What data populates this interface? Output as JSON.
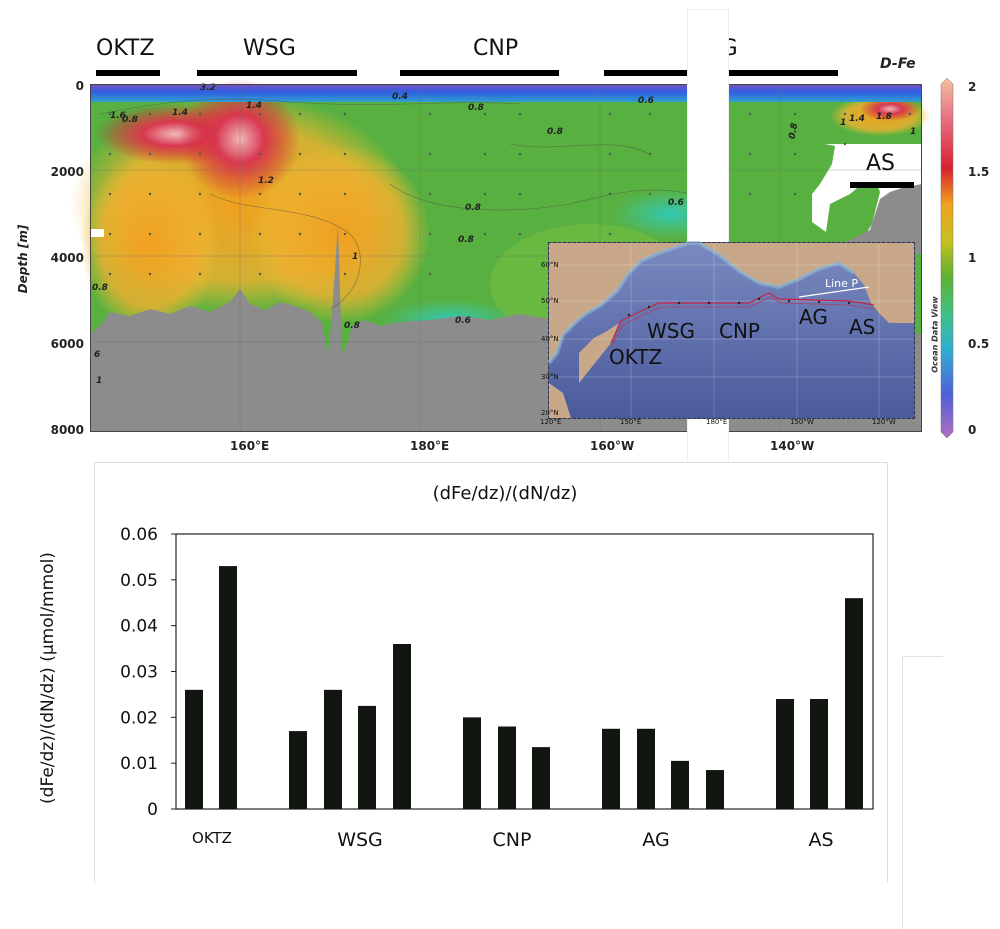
{
  "section_plot": {
    "regions": [
      {
        "label": "OKTZ"
      },
      {
        "label": "WSG"
      },
      {
        "label": "CNP"
      },
      {
        "label": "AG"
      },
      {
        "label": "AS"
      }
    ],
    "title": "D-Fe",
    "ylabel": "Depth [m]",
    "y_ticks": [
      "0",
      "2000",
      "4000",
      "6000",
      "8000"
    ],
    "x_ticks": [
      "160°E",
      "180°E",
      "160°W",
      "140°W"
    ],
    "colorbar_ticks": [
      "2",
      "1.5",
      "1",
      "0.5",
      "0"
    ],
    "colorbar_caption": "Ocean Data View",
    "contour_labels": [
      "3.2",
      "1.6",
      "1.4",
      "1.4",
      "1.2",
      "0.4",
      "0.8",
      "0.8",
      "0.8",
      "0.6",
      "0.6",
      "0.8",
      "1",
      "0.8",
      "0.6",
      "0.8",
      "1",
      "0.8",
      "1.4",
      "1.8",
      "1",
      "1",
      "6",
      "0.8"
    ],
    "inset_map": {
      "lat_ticks": [
        "60°N",
        "50°N",
        "40°N",
        "30°N",
        "20°N"
      ],
      "lon_ticks": [
        "120°E",
        "150°E",
        "180°E",
        "150°W",
        "120°W"
      ],
      "labels": [
        "WSG",
        "CNP",
        "AG",
        "AS",
        "OKTZ",
        "Line P"
      ],
      "credit": "Ocean Data View"
    }
  },
  "chart_data": {
    "type": "bar",
    "title": "(dFe/dz)/(dN/dz)",
    "ylabel": "(dFe/dz)/(dN/dz)  (μmol/mmol)",
    "xlabel": "",
    "ylim": [
      0,
      0.06
    ],
    "y_ticks": [
      "0",
      "0.01",
      "0.02",
      "0.03",
      "0.04",
      "0.05",
      "0.06"
    ],
    "groups": [
      {
        "label": "OKTZ",
        "values": [
          0.026,
          0.053
        ]
      },
      {
        "label": "WSG",
        "values": [
          0.017,
          0.026,
          0.0225,
          0.036
        ]
      },
      {
        "label": "CNP",
        "values": [
          0.02,
          0.018,
          0.0135
        ]
      },
      {
        "label": "AG",
        "values": [
          0.0175,
          0.0175,
          0.0105,
          0.0085
        ]
      },
      {
        "label": "AS",
        "values": [
          0.024,
          0.024,
          0.046
        ]
      }
    ],
    "colors": {
      "bar": "#111611"
    }
  }
}
